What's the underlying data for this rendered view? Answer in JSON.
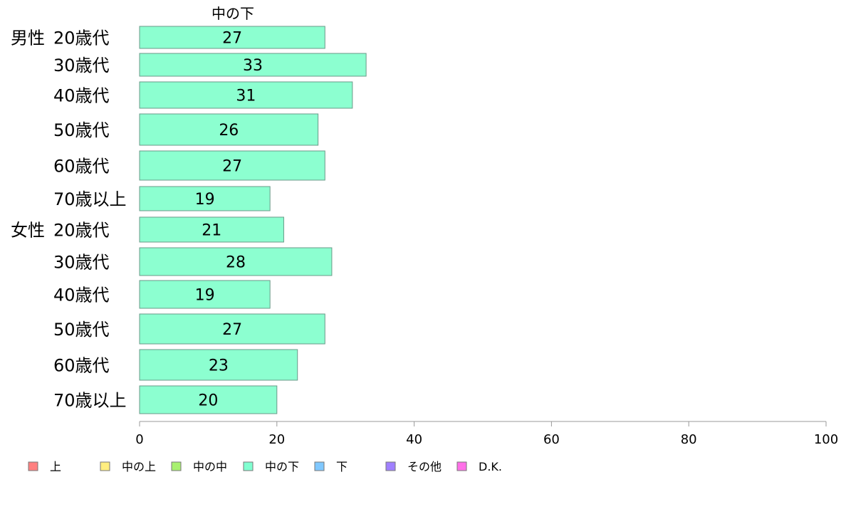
{
  "chart_data": {
    "type": "bar",
    "orientation": "horizontal",
    "title": "中の下",
    "groups": [
      {
        "label": "男性",
        "categories": [
          "20歳代",
          "30歳代",
          "40歳代",
          "50歳代",
          "60歳代",
          "70歳以上"
        ],
        "values": [
          27,
          33,
          31,
          26,
          27,
          19
        ]
      },
      {
        "label": "女性",
        "categories": [
          "20歳代",
          "30歳代",
          "40歳代",
          "50歳代",
          "60歳代",
          "70歳以上"
        ],
        "values": [
          21,
          28,
          19,
          27,
          23,
          20
        ]
      }
    ],
    "xlim": [
      0,
      100
    ],
    "xticks": [
      0,
      20,
      40,
      60,
      80,
      100
    ],
    "bar_color": "#8cffd0",
    "legend_placement": "bottom",
    "legend": [
      {
        "label": "上",
        "color": "#ff8080"
      },
      {
        "label": "中の上",
        "color": "#ffee80"
      },
      {
        "label": "中の中",
        "color": "#a8f070"
      },
      {
        "label": "中の下",
        "color": "#80ffd0"
      },
      {
        "label": "下",
        "color": "#80c8ff"
      },
      {
        "label": "その他",
        "color": "#a080ff"
      },
      {
        "label": "D.K.",
        "color": "#ff70e8"
      }
    ]
  }
}
